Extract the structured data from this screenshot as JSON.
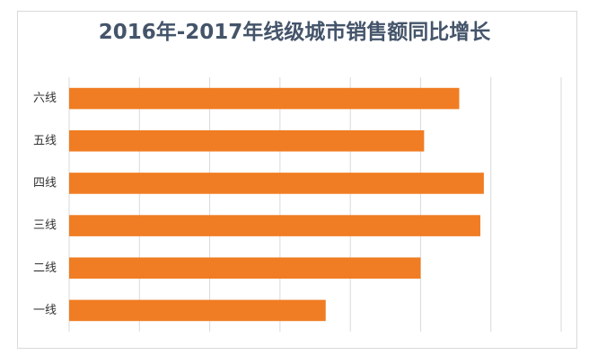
{
  "chart_data": {
    "type": "bar",
    "orientation": "horizontal",
    "title": "2016年-2017年线级城市销售额同比增长",
    "categories": [
      "一线",
      "二线",
      "三线",
      "四线",
      "五线",
      "六线"
    ],
    "values": [
      36.5,
      50,
      58.5,
      59,
      50.5,
      55.5
    ],
    "xlim": [
      0,
      70
    ],
    "grid": true,
    "legend": "none",
    "bar_color": "#f07d23"
  }
}
